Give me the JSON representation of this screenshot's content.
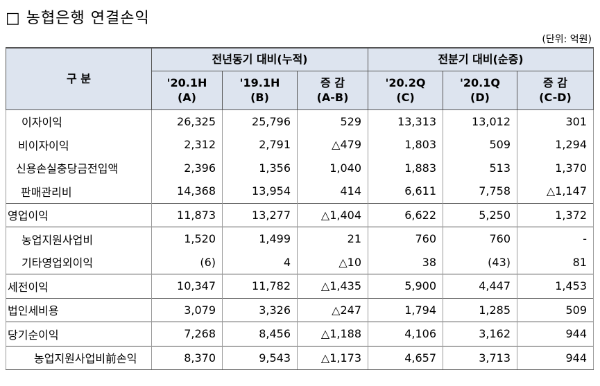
{
  "header": {
    "title": "□ 농협은행 연결손익",
    "unit": "(단위: 억원)"
  },
  "table": {
    "corner": "구 분",
    "groups": [
      "전년동기 대비(누적)",
      "전분기 대비(순증)"
    ],
    "columns": [
      [
        "'20.1H",
        "(A)"
      ],
      [
        "'19.1H",
        "(B)"
      ],
      [
        "증 감",
        "(A-B)"
      ],
      [
        "'20.2Q",
        "(C)"
      ],
      [
        "'20.1Q",
        "(D)"
      ],
      [
        "증 감",
        "(C-D)"
      ]
    ],
    "rows": [
      [
        "이자이익",
        "26,325",
        "25,796",
        "529",
        "13,313",
        "13,012",
        "301"
      ],
      [
        "비이자이익",
        "2,312",
        "2,791",
        "△479",
        "1,803",
        "509",
        "1,294"
      ],
      [
        "신용손실충당금전입액",
        "2,396",
        "1,356",
        "1,040",
        "1,883",
        "513",
        "1,370"
      ],
      [
        "판매관리비",
        "14,368",
        "13,954",
        "414",
        "6,611",
        "7,758",
        "△1,147"
      ],
      [
        "영업이익",
        "11,873",
        "13,277",
        "△1,404",
        "6,622",
        "5,250",
        "1,372"
      ],
      [
        "농업지원사업비",
        "1,520",
        "1,499",
        "21",
        "760",
        "760",
        "-"
      ],
      [
        "기타영업외이익",
        "(6)",
        "4",
        "△10",
        "38",
        "(43)",
        "81"
      ],
      [
        "세전이익",
        "10,347",
        "11,782",
        "△1,435",
        "5,900",
        "4,447",
        "1,453"
      ],
      [
        "법인세비용",
        "3,079",
        "3,326",
        "△247",
        "1,794",
        "1,285",
        "509"
      ],
      [
        "당기순이익",
        "7,268",
        "8,456",
        "△1,188",
        "4,106",
        "3,162",
        "944"
      ],
      [
        "농업지원사업비前손익",
        "8,370",
        "9,543",
        "△1,173",
        "4,657",
        "3,713",
        "944"
      ]
    ]
  }
}
